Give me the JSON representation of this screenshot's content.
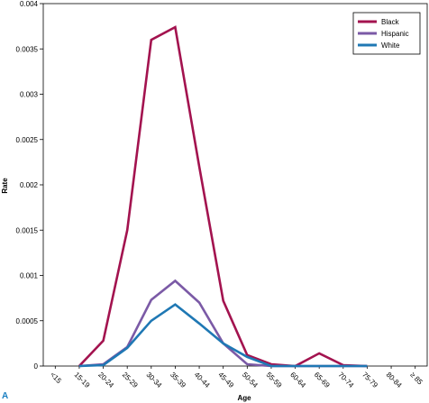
{
  "panel_label": "A",
  "chart_data": {
    "type": "line",
    "xlabel": "Age",
    "ylabel": "Rate",
    "categories": [
      "<15",
      "15-19",
      "20-24",
      "25-29",
      "30-34",
      "35-39",
      "40-44",
      "45-49",
      "50-54",
      "55-59",
      "60-64",
      "65-69",
      "70-74",
      "75-79",
      "80-84",
      "≥ 85"
    ],
    "ylim": [
      0,
      0.004
    ],
    "yticks": [
      "0",
      "0.0005",
      "0.001",
      "0.0015",
      "0.002",
      "0.0025",
      "0.003",
      "0.0035",
      "0.004"
    ],
    "yticks_values": [
      0,
      0.0005,
      0.001,
      0.0015,
      0.002,
      0.0025,
      0.003,
      0.0035,
      0.004
    ],
    "legend_position": "top-right",
    "grid": false,
    "series": [
      {
        "name": "Black",
        "color": "#a3134f",
        "values": [
          null,
          0,
          0.00028,
          0.0015,
          0.0036,
          0.00374,
          0.0022,
          0.00072,
          0.00012,
          2e-05,
          0,
          0.00014,
          1e-05,
          0,
          null,
          null
        ]
      },
      {
        "name": "Hispanic",
        "color": "#7b5aa6",
        "values": [
          null,
          0,
          2e-05,
          0.00021,
          0.00073,
          0.00094,
          0.0007,
          0.00025,
          2e-05,
          0,
          0,
          0,
          0,
          0,
          null,
          null
        ]
      },
      {
        "name": "White",
        "color": "#1f78b4",
        "values": [
          null,
          0,
          1e-05,
          0.0002,
          0.0005,
          0.00068,
          0.00047,
          0.00025,
          0.0001,
          0,
          0,
          0,
          0,
          0,
          null,
          null
        ]
      }
    ]
  }
}
